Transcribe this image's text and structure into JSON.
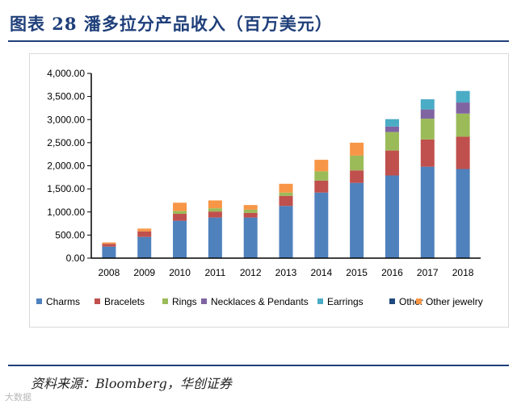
{
  "header": {
    "title": "图表 28  潘多拉分产品收入（百万美元）"
  },
  "footer": {
    "source": "资料来源：Bloomberg，华创证券",
    "watermark": "大数据"
  },
  "colors": {
    "title": "#1f3f7a",
    "Charms": "#4f81bd",
    "Bracelets": "#c0504d",
    "Rings": "#9bbb59",
    "Necklaces & Pendants": "#8064a2",
    "Earrings": "#4bacc6",
    "Other": "#1f497d",
    "Other jewelry": "#f79646"
  },
  "chart_data": {
    "type": "bar",
    "stacked": true,
    "categories": [
      "2008",
      "2009",
      "2010",
      "2011",
      "2012",
      "2013",
      "2014",
      "2015",
      "2016",
      "2017",
      "2018"
    ],
    "series": [
      {
        "name": "Charms",
        "values": [
          250,
          460,
          810,
          880,
          880,
          1130,
          1420,
          1630,
          1790,
          1980,
          1930
        ]
      },
      {
        "name": "Bracelets",
        "values": [
          60,
          120,
          150,
          130,
          100,
          220,
          260,
          270,
          540,
          590,
          700
        ]
      },
      {
        "name": "Rings",
        "values": [
          0,
          0,
          60,
          70,
          70,
          70,
          200,
          320,
          400,
          450,
          500
        ]
      },
      {
        "name": "Necklaces & Pendants",
        "values": [
          0,
          0,
          0,
          0,
          0,
          0,
          0,
          0,
          120,
          200,
          240
        ]
      },
      {
        "name": "Earrings",
        "values": [
          0,
          0,
          0,
          0,
          0,
          0,
          0,
          0,
          160,
          220,
          250
        ]
      },
      {
        "name": "Other",
        "values": [
          0,
          0,
          0,
          0,
          0,
          0,
          0,
          0,
          0,
          0,
          0
        ]
      },
      {
        "name": "Other jewelry",
        "values": [
          30,
          60,
          180,
          170,
          100,
          190,
          250,
          280,
          0,
          0,
          0
        ]
      }
    ],
    "y_ticks": [
      "0.00",
      "500.00",
      "1,000.00",
      "1,500.00",
      "2,000.00",
      "2,500.00",
      "3,000.00",
      "3,500.00",
      "4,000.00"
    ],
    "ylim": [
      0,
      4000
    ],
    "legend_position": "bottom",
    "grid": false
  }
}
